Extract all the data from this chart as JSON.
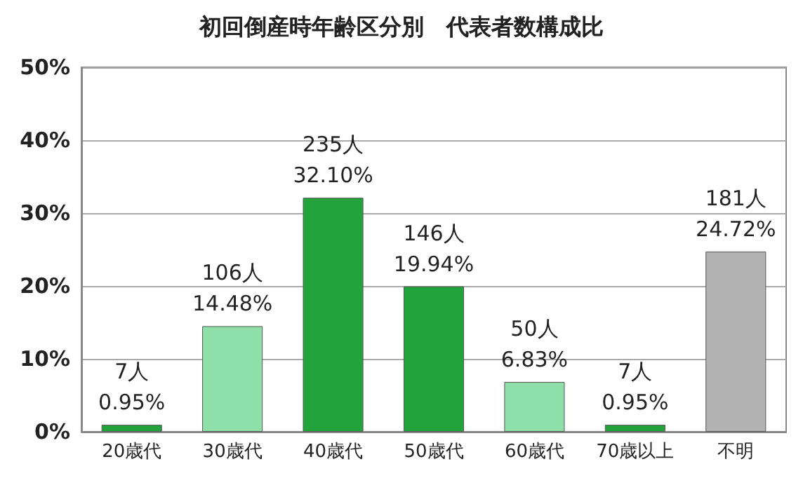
{
  "chart_data": {
    "type": "bar",
    "title": "初回倒産時年齢区分別　代表者数構成比",
    "categories": [
      "20歳代",
      "30歳代",
      "40歳代",
      "50歳代",
      "60歳代",
      "70歳以上",
      "不明"
    ],
    "values": [
      0.95,
      14.48,
      32.1,
      19.94,
      6.83,
      0.95,
      24.72
    ],
    "colors": [
      "#22a33b",
      "#8fe0a8",
      "#22a33b",
      "#22a33b",
      "#8fe0a8",
      "#22a33b",
      "#b3b3b3"
    ],
    "value_labels": [
      "7人\n0.95%",
      "106人\n14.48%",
      "235人\n32.10%",
      "146人\n19.94%",
      "50人\n6.83%",
      "7人\n0.95%",
      "181人\n24.72%"
    ],
    "ylim": [
      0,
      50
    ],
    "yticks": [
      {
        "value": 0,
        "label": "0%"
      },
      {
        "value": 10,
        "label": "10%"
      },
      {
        "value": 20,
        "label": "20%"
      },
      {
        "value": 30,
        "label": "30%"
      },
      {
        "value": 40,
        "label": "40%"
      },
      {
        "value": 50,
        "label": "50%"
      }
    ],
    "grid": "y"
  }
}
